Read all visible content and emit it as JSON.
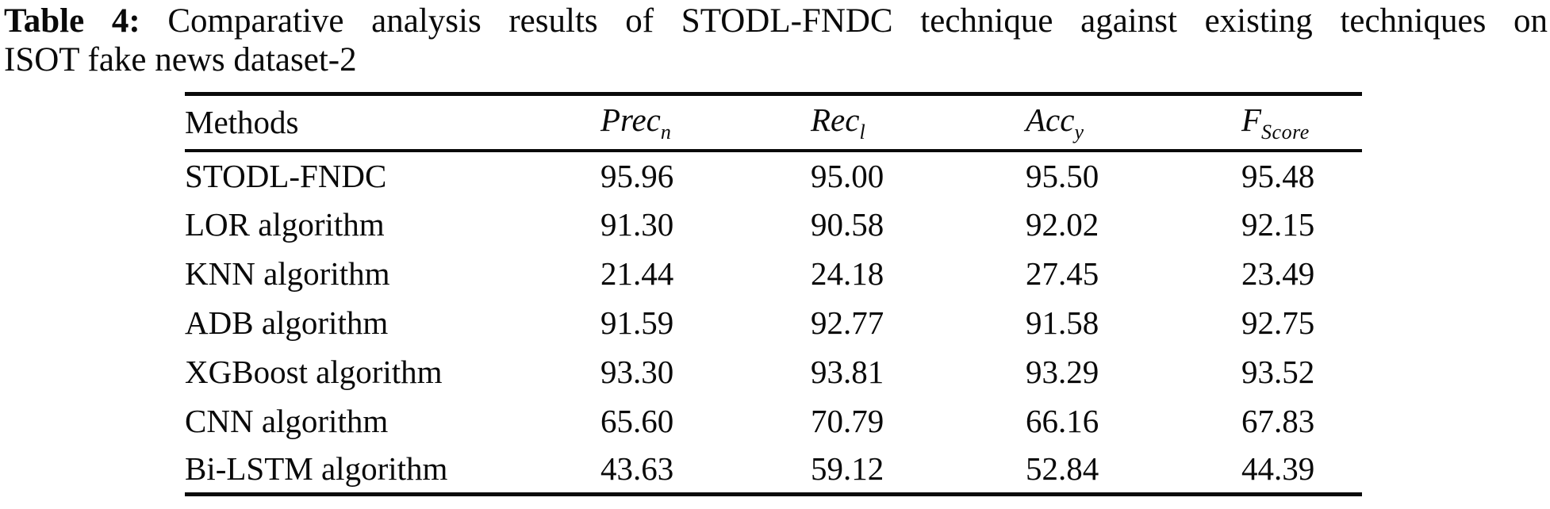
{
  "caption": {
    "label": "Table 4:",
    "line1": "Comparative analysis results of STODL-FNDC technique against existing techniques on",
    "line2": "ISOT fake news dataset-2"
  },
  "table": {
    "columns": [
      {
        "label": "Methods"
      },
      {
        "main": "Prec",
        "sub": "n"
      },
      {
        "main": "Rec",
        "sub": "l"
      },
      {
        "main": "Acc",
        "sub": "y"
      },
      {
        "main": "F",
        "sub": "Score"
      }
    ],
    "rows": [
      {
        "method": "STODL-FNDC",
        "values": [
          "95.96",
          "95.00",
          "95.50",
          "95.48"
        ]
      },
      {
        "method": "LOR algorithm",
        "values": [
          "91.30",
          "90.58",
          "92.02",
          "92.15"
        ]
      },
      {
        "method": "KNN algorithm",
        "values": [
          "21.44",
          "24.18",
          "27.45",
          "23.49"
        ]
      },
      {
        "method": "ADB algorithm",
        "values": [
          "91.59",
          "92.77",
          "91.58",
          "92.75"
        ]
      },
      {
        "method": "XGBoost algorithm",
        "values": [
          "93.30",
          "93.81",
          "93.29",
          "93.52"
        ]
      },
      {
        "method": "CNN algorithm",
        "values": [
          "65.60",
          "70.79",
          "66.16",
          "67.83"
        ]
      },
      {
        "method": "Bi-LSTM algorithm",
        "values": [
          "43.63",
          "59.12",
          "52.84",
          "44.39"
        ]
      }
    ]
  },
  "colors": {
    "background": "#ffffff",
    "text": "#0a0a0a",
    "rule": "#0a0a0a"
  }
}
